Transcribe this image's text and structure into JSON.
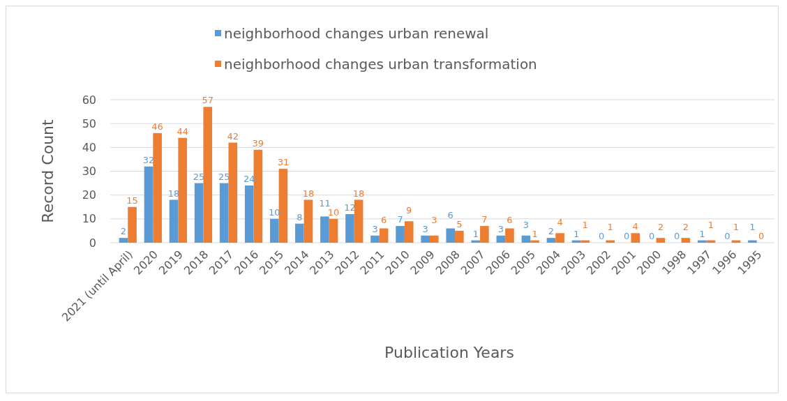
{
  "chart_data": {
    "type": "bar",
    "xlabel": "Publication Years",
    "ylabel": "Record Count",
    "categories": [
      "2021 (until April)",
      "2020",
      "2019",
      "2018",
      "2017",
      "2016",
      "2015",
      "2014",
      "2013",
      "2012",
      "2011",
      "2010",
      "2009",
      "2008",
      "2007",
      "2006",
      "2005",
      "2004",
      "2003",
      "2002",
      "2001",
      "2000",
      "1998",
      "1997",
      "1996",
      "1995"
    ],
    "series": [
      {
        "name": "neighborhood changes urban renewal",
        "color": "#5b9bd5",
        "values": [
          2,
          32,
          18,
          25,
          25,
          24,
          10,
          8,
          11,
          12,
          3,
          7,
          3,
          6,
          1,
          3,
          3,
          2,
          1,
          0,
          0,
          0,
          0,
          1,
          0,
          1
        ]
      },
      {
        "name": "neighborhood changes urban transformation",
        "color": "#ed7d31",
        "values": [
          15,
          46,
          44,
          57,
          42,
          39,
          31,
          18,
          10,
          18,
          6,
          9,
          3,
          5,
          7,
          6,
          1,
          4,
          1,
          1,
          4,
          2,
          2,
          1,
          1,
          0
        ]
      }
    ],
    "ylim": [
      0,
      60
    ],
    "yticks": [
      0,
      10,
      20,
      30,
      40,
      50,
      60
    ],
    "grid": "y",
    "legend": "top",
    "data_labels": true
  }
}
